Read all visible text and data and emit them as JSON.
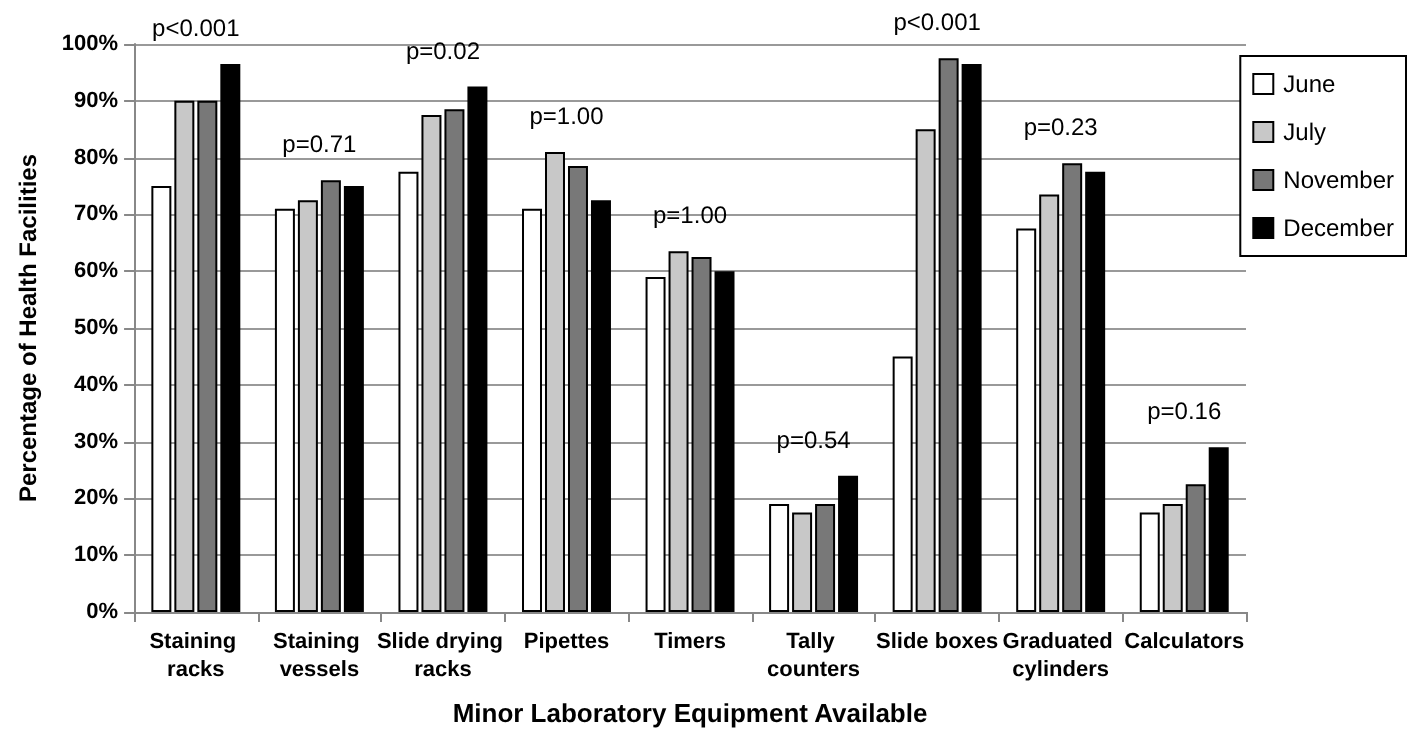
{
  "chart_data": {
    "type": "bar",
    "xlabel": "Minor Laboratory Equipment Available",
    "ylabel": "Percentage of Health Facilities",
    "categories": [
      "Staining racks",
      "Staining vessels",
      "Slide drying racks",
      "Pipettes",
      "Timers",
      "Tally counters",
      "Slide boxes",
      "Graduated cylinders",
      "Calculators"
    ],
    "series": [
      {
        "name": "June",
        "color": "#ffffff",
        "values": [
          75,
          71,
          77.5,
          71,
          59,
          19,
          45,
          67.5,
          17.5
        ]
      },
      {
        "name": "July",
        "color": "#c8c8c8",
        "values": [
          90,
          72.5,
          87.5,
          81,
          63.5,
          17.5,
          85,
          73.5,
          19
        ]
      },
      {
        "name": "November",
        "color": "#787878",
        "values": [
          90,
          76,
          88.5,
          78.5,
          62.5,
          19,
          97.5,
          79,
          22.5
        ]
      },
      {
        "name": "December",
        "color": "#000000",
        "values": [
          96.5,
          75,
          92.5,
          72.5,
          60,
          24,
          96.5,
          77.5,
          29
        ]
      }
    ],
    "annotations": [
      "p<0.001",
      "p=0.71",
      "p=0.02",
      "p=1.00",
      "p=1.00",
      "p=0.54",
      "p<0.001",
      "p=0.23",
      "p=0.16"
    ],
    "ylim": [
      0,
      100
    ],
    "yticks": [
      {
        "value": 0,
        "label": "0%"
      },
      {
        "value": 10,
        "label": "10%"
      },
      {
        "value": 20,
        "label": "20%"
      },
      {
        "value": 30,
        "label": "30%"
      },
      {
        "value": 40,
        "label": "40%"
      },
      {
        "value": 50,
        "label": "50%"
      },
      {
        "value": 60,
        "label": "60%"
      },
      {
        "value": 70,
        "label": "70%"
      },
      {
        "value": 80,
        "label": "80%"
      },
      {
        "value": 90,
        "label": "90%"
      },
      {
        "value": 100,
        "label": "100%"
      }
    ],
    "grid": "y",
    "legend": "top right"
  }
}
